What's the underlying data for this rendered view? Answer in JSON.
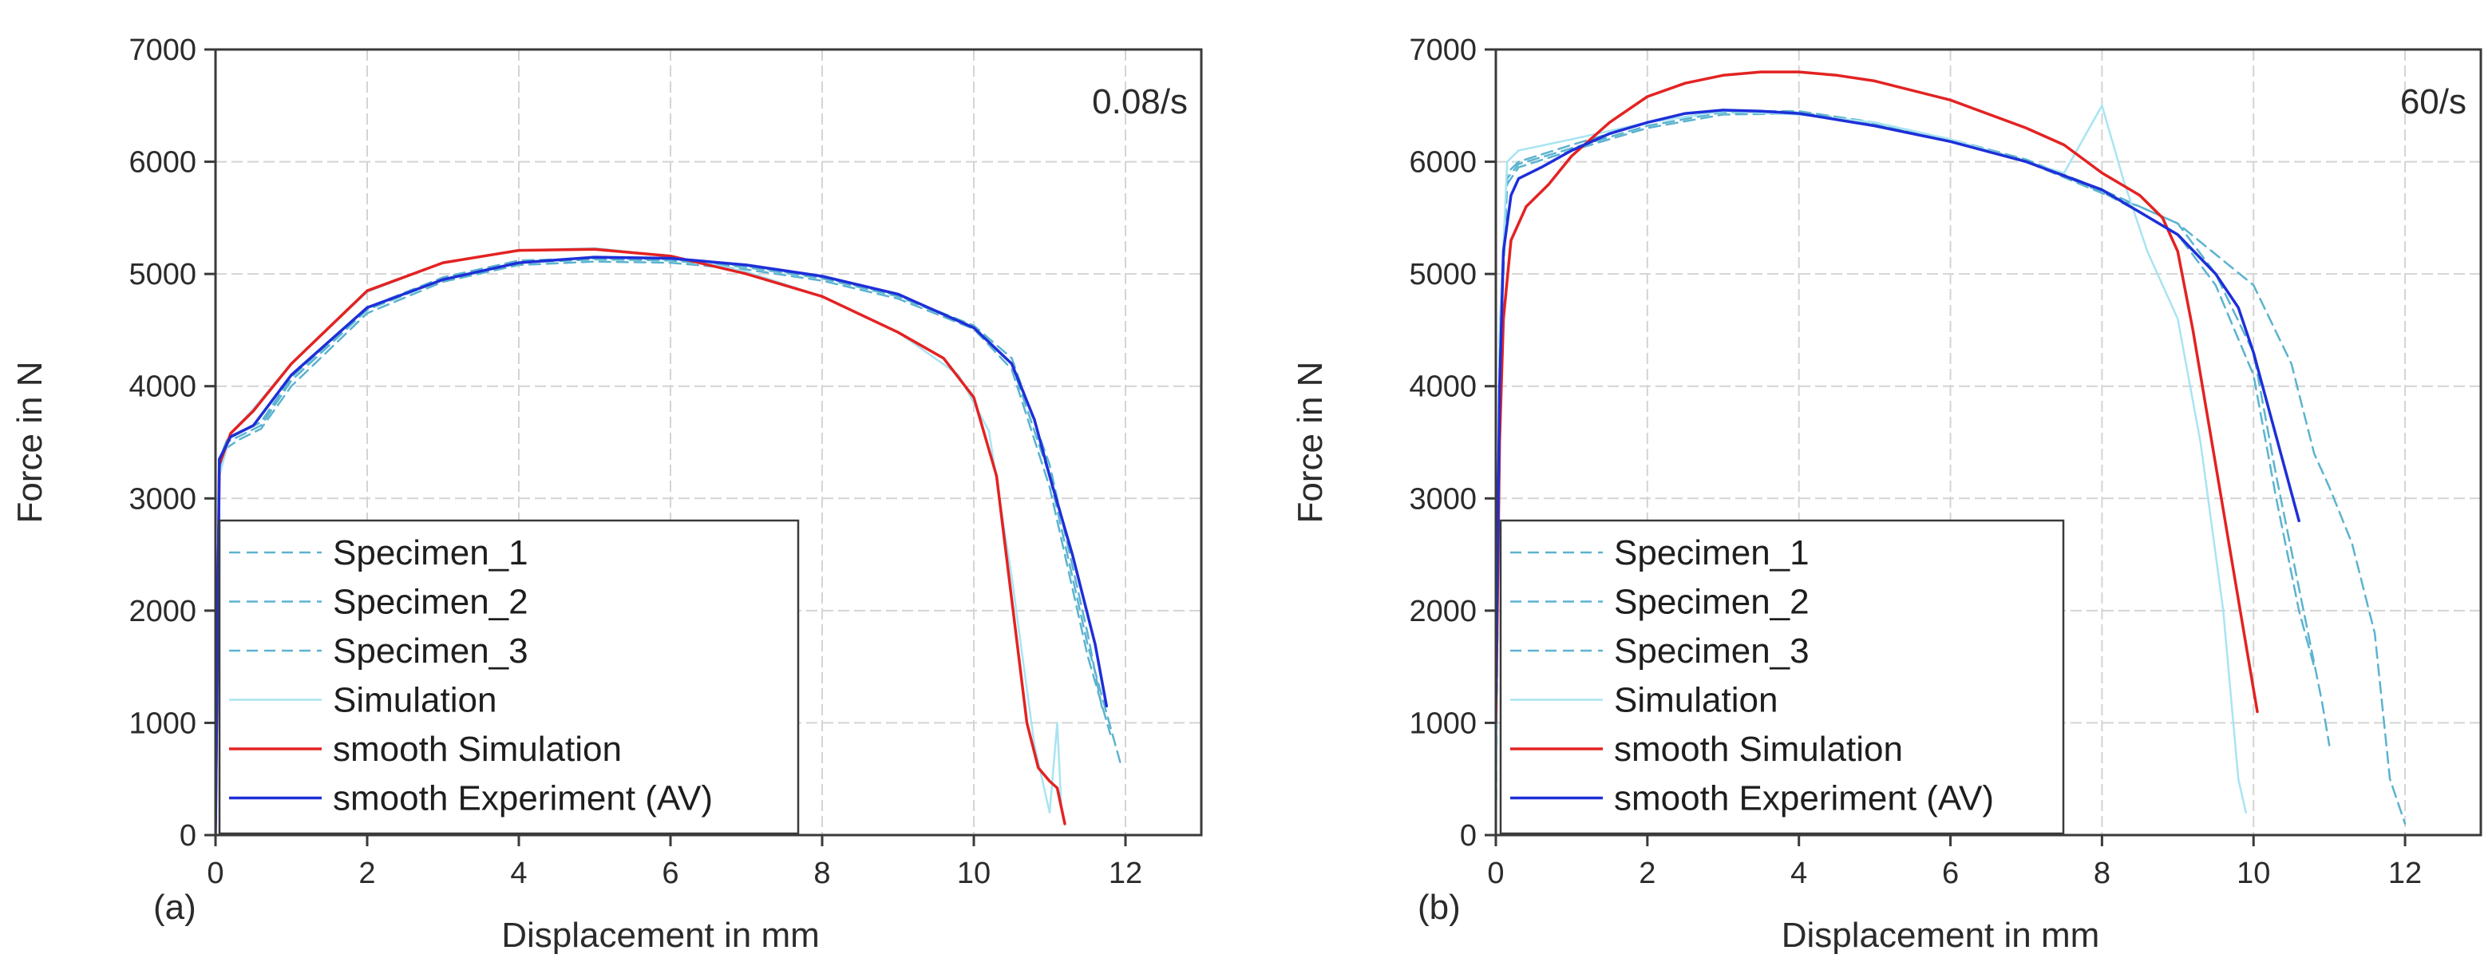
{
  "colors": {
    "specimen": "#5bb3cf",
    "simulation": "#a8e4f2",
    "smooth_simulation": "#e32222",
    "smooth_experiment": "#1d2fd8"
  },
  "chart_data": [
    {
      "type": "line",
      "panel_label": "(a)",
      "annotation": "0.08/s",
      "xlabel": "Displacement in mm",
      "ylabel": "Force in N",
      "xlim": [
        0,
        13
      ],
      "ylim": [
        0,
        7000
      ],
      "xticks": [
        0,
        2,
        4,
        6,
        8,
        10,
        12
      ],
      "yticks": [
        0,
        1000,
        2000,
        3000,
        4000,
        5000,
        6000,
        7000
      ],
      "grid": true,
      "legend_position": "bottom-left",
      "series": [
        {
          "name": "Specimen_1",
          "style": "dashed",
          "color_key": "specimen",
          "x": [
            0,
            0.05,
            0.15,
            0.3,
            0.6,
            1,
            2,
            3,
            4,
            5,
            6,
            7,
            8,
            9,
            10,
            10.5,
            11,
            11.5,
            11.95
          ],
          "y": [
            0,
            3300,
            3500,
            3550,
            3650,
            4050,
            4680,
            4950,
            5100,
            5130,
            5120,
            5060,
            4960,
            4800,
            4530,
            4200,
            3200,
            1700,
            600
          ]
        },
        {
          "name": "Specimen_2",
          "style": "dashed",
          "color_key": "specimen",
          "x": [
            0,
            0.05,
            0.15,
            0.3,
            0.6,
            1,
            2,
            3,
            4,
            5,
            6,
            7,
            8,
            9,
            10,
            10.5,
            11,
            11.5,
            11.8
          ],
          "y": [
            0,
            3250,
            3450,
            3520,
            3620,
            4000,
            4650,
            4930,
            5080,
            5110,
            5100,
            5040,
            4940,
            4780,
            4510,
            4150,
            3100,
            1600,
            900
          ]
        },
        {
          "name": "Specimen_3",
          "style": "dashed",
          "color_key": "specimen",
          "x": [
            0,
            0.05,
            0.15,
            0.3,
            0.6,
            1,
            2,
            3,
            4,
            5,
            6,
            7,
            8,
            9,
            10,
            10.5,
            11,
            11.5,
            11.7
          ],
          "y": [
            0,
            3350,
            3520,
            3580,
            3680,
            4080,
            4700,
            4970,
            5120,
            5140,
            5130,
            5070,
            4970,
            4810,
            4540,
            4250,
            3300,
            1800,
            1100
          ]
        },
        {
          "name": "Simulation",
          "style": "solid",
          "color_key": "simulation",
          "x": [
            0,
            0.05,
            0.2,
            0.5,
            1,
            2,
            3,
            4,
            5,
            6,
            7,
            8,
            9,
            9.8,
            10.2,
            10.5,
            10.8,
            11,
            11.1,
            11.15
          ],
          "y": [
            0,
            3200,
            3580,
            3800,
            4200,
            4840,
            5100,
            5210,
            5230,
            5160,
            5020,
            4800,
            4480,
            4100,
            3600,
            2300,
            800,
            200,
            1000,
            300
          ]
        },
        {
          "name": "smooth Simulation",
          "style": "solid",
          "color_key": "smooth_simulation",
          "x": [
            0,
            0.05,
            0.2,
            0.5,
            1,
            2,
            3,
            4,
            5,
            6,
            7,
            8,
            9,
            9.6,
            10,
            10.3,
            10.5,
            10.7,
            10.85,
            11,
            11.1,
            11.2
          ],
          "y": [
            100,
            3300,
            3580,
            3780,
            4200,
            4850,
            5100,
            5210,
            5220,
            5160,
            5000,
            4800,
            4480,
            4250,
            3900,
            3200,
            2100,
            1000,
            600,
            480,
            420,
            100
          ]
        },
        {
          "name": "smooth Experiment (AV)",
          "style": "solid",
          "color_key": "smooth_experiment",
          "x": [
            0,
            0.05,
            0.2,
            0.5,
            1,
            2,
            3,
            4,
            5,
            6,
            7,
            8,
            9,
            10,
            10.5,
            10.8,
            11,
            11.3,
            11.6,
            11.75
          ],
          "y": [
            0,
            3350,
            3550,
            3650,
            4100,
            4700,
            4950,
            5100,
            5150,
            5140,
            5080,
            4980,
            4820,
            4520,
            4200,
            3700,
            3200,
            2500,
            1700,
            1150
          ]
        }
      ]
    },
    {
      "type": "line",
      "panel_label": "(b)",
      "annotation": "60/s",
      "xlabel": "Displacement in mm",
      "ylabel": "Force in N",
      "xlim": [
        0,
        13
      ],
      "ylim": [
        0,
        7000
      ],
      "xticks": [
        0,
        2,
        4,
        6,
        8,
        10,
        12
      ],
      "yticks": [
        0,
        1000,
        2000,
        3000,
        4000,
        5000,
        6000,
        7000
      ],
      "grid": true,
      "legend_position": "bottom-left",
      "series": [
        {
          "name": "Specimen_1",
          "style": "dashed",
          "color_key": "specimen",
          "x": [
            0,
            0.05,
            0.15,
            0.3,
            1,
            2,
            3,
            4,
            5,
            6,
            7,
            8,
            9,
            10,
            10.5,
            10.8,
            11,
            11.3,
            11.6,
            11.8,
            12
          ],
          "y": [
            0,
            4500,
            5900,
            6000,
            6150,
            6350,
            6450,
            6450,
            6350,
            6200,
            6020,
            5750,
            5450,
            4900,
            4200,
            3400,
            3100,
            2600,
            1800,
            500,
            100
          ]
        },
        {
          "name": "Specimen_2",
          "style": "dashed",
          "color_key": "specimen",
          "x": [
            0,
            0.05,
            0.15,
            0.3,
            1,
            2,
            3,
            4,
            5,
            6,
            7,
            8,
            8.5,
            9,
            9.5,
            10,
            10.3,
            10.6,
            10.9,
            11
          ],
          "y": [
            0,
            4200,
            5800,
            5950,
            6100,
            6300,
            6420,
            6430,
            6330,
            6180,
            6000,
            5720,
            5600,
            5450,
            5000,
            4300,
            3200,
            2200,
            1200,
            800
          ]
        },
        {
          "name": "Specimen_3",
          "style": "dashed",
          "color_key": "specimen",
          "x": [
            0,
            0.05,
            0.15,
            0.3,
            1,
            2,
            3,
            4,
            5,
            6,
            7,
            8,
            8.5,
            9,
            9.5,
            10,
            10.3,
            10.6,
            10.8
          ],
          "y": [
            0,
            4300,
            5850,
            5980,
            6120,
            6320,
            6440,
            6440,
            6340,
            6190,
            6010,
            5730,
            5550,
            5350,
            4900,
            4100,
            3000,
            2000,
            1500
          ]
        },
        {
          "name": "Simulation",
          "style": "solid",
          "color_key": "simulation",
          "x": [
            0,
            0.05,
            0.15,
            0.3,
            1,
            2,
            3,
            4,
            5,
            6,
            7,
            7.5,
            8,
            8.3,
            8.6,
            9,
            9.3,
            9.6,
            9.8,
            9.9
          ],
          "y": [
            0,
            4500,
            6000,
            6100,
            6200,
            6350,
            6450,
            6420,
            6350,
            6200,
            6000,
            5900,
            6500,
            5800,
            5200,
            4600,
            3500,
            2000,
            500,
            200
          ]
        },
        {
          "name": "smooth Simulation",
          "style": "solid",
          "color_key": "smooth_simulation",
          "x": [
            0,
            0.05,
            0.1,
            0.2,
            0.4,
            0.7,
            1,
            1.5,
            2,
            2.5,
            3,
            3.5,
            4,
            4.5,
            5,
            6,
            7,
            7.5,
            8,
            8.5,
            8.8,
            9,
            9.2,
            9.4,
            9.6,
            9.8,
            10,
            10.05
          ],
          "y": [
            1000,
            3500,
            4600,
            5300,
            5600,
            5800,
            6050,
            6350,
            6580,
            6700,
            6770,
            6800,
            6800,
            6770,
            6720,
            6550,
            6300,
            6150,
            5900,
            5700,
            5500,
            5200,
            4500,
            3700,
            2900,
            2100,
            1300,
            1100
          ]
        },
        {
          "name": "smooth Experiment (AV)",
          "style": "solid",
          "color_key": "smooth_experiment",
          "x": [
            0,
            0.05,
            0.1,
            0.2,
            0.3,
            0.6,
            1,
            1.5,
            2,
            2.5,
            3,
            3.5,
            4,
            5,
            6,
            7,
            8,
            8.5,
            9,
            9.5,
            9.8,
            10,
            10.2,
            10.4,
            10.6
          ],
          "y": [
            1200,
            4000,
            5200,
            5700,
            5850,
            5950,
            6100,
            6250,
            6350,
            6430,
            6460,
            6450,
            6430,
            6320,
            6180,
            6000,
            5750,
            5550,
            5350,
            5000,
            4700,
            4300,
            3800,
            3300,
            2800
          ]
        }
      ]
    }
  ]
}
